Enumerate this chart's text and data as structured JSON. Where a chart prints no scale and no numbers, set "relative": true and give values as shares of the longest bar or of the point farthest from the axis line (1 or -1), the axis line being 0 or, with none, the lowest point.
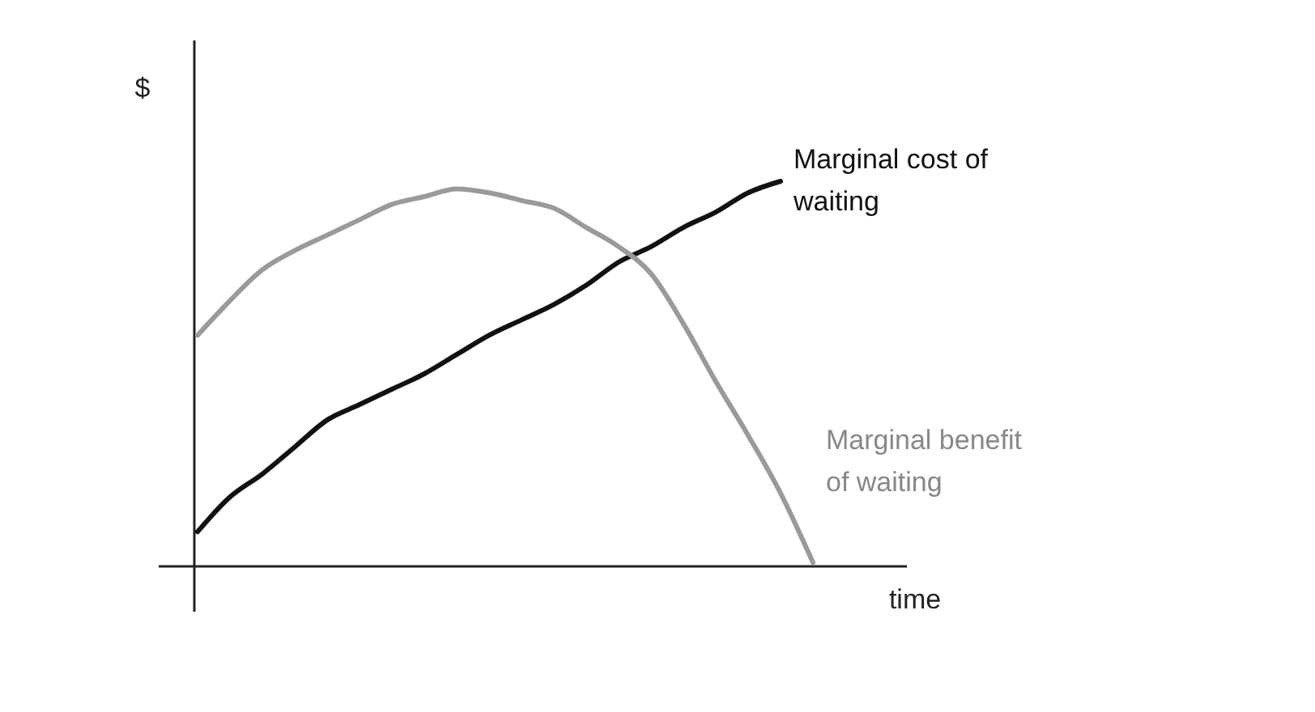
{
  "chart_data": {
    "type": "line",
    "relative": true,
    "xlabel": "time",
    "ylabel": "$",
    "legend": false,
    "marker": "none",
    "line_style": "solid",
    "categories": [
      null,
      null,
      null,
      null,
      null,
      null,
      null,
      null,
      null,
      null,
      null,
      null,
      null,
      null,
      null,
      null,
      null,
      null,
      null,
      null
    ],
    "series": [
      {
        "name": "Marginal cost of waiting",
        "color": "#111111",
        "values": [
          0.09,
          0.18,
          0.24,
          0.31,
          0.38,
          0.42,
          0.46,
          0.5,
          0.55,
          0.6,
          0.64,
          0.68,
          0.73,
          0.79,
          0.83,
          0.88,
          0.92,
          0.97,
          1,
          null
        ]
      },
      {
        "name": "Marginal benefit of waiting",
        "color": "#9a9a9a",
        "values": [
          0.6,
          0.69,
          0.77,
          0.82,
          0.86,
          0.9,
          0.94,
          0.96,
          0.98,
          0.97,
          0.95,
          0.93,
          0.88,
          0.83,
          0.76,
          0.63,
          0.48,
          0.34,
          0.19,
          0.01
        ]
      }
    ]
  }
}
